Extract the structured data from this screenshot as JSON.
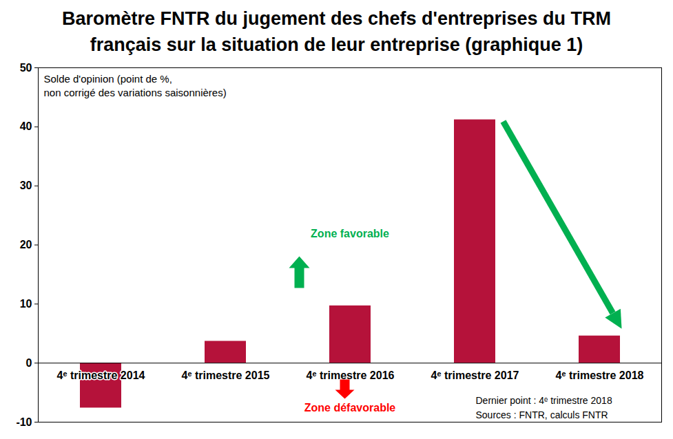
{
  "chart_data": {
    "type": "bar",
    "title": "Baromètre FNTR du jugement des chefs d'entreprises du TRM français sur la situation de leur entreprise (graphique 1)",
    "subtitle": "Solde d'opinion (point de %,\nnon corrigé des variations saisonnières)",
    "categories": [
      "4ᵉ trimestre 2014",
      "4ᵉ trimestre 2015",
      "4ᵉ trimestre 2016",
      "4ᵉ trimestre 2017",
      "4ᵉ trimestre 2018"
    ],
    "values": [
      -7.6,
      3.7,
      9.7,
      41.2,
      4.6
    ],
    "color": "#b5123a",
    "ylim": [
      -10,
      50
    ],
    "yticks": [
      -10,
      0,
      10,
      20,
      30,
      40,
      50
    ],
    "grid": false,
    "annotations": [
      {
        "text": "Zone favorable",
        "color": "#00b050"
      },
      {
        "text": "Zone défavorable",
        "color": "#ff0000"
      }
    ],
    "notes": [
      "Dernier point : 4ᵉ trimestre 2018",
      "Sources : FNTR, calculs FNTR"
    ]
  }
}
